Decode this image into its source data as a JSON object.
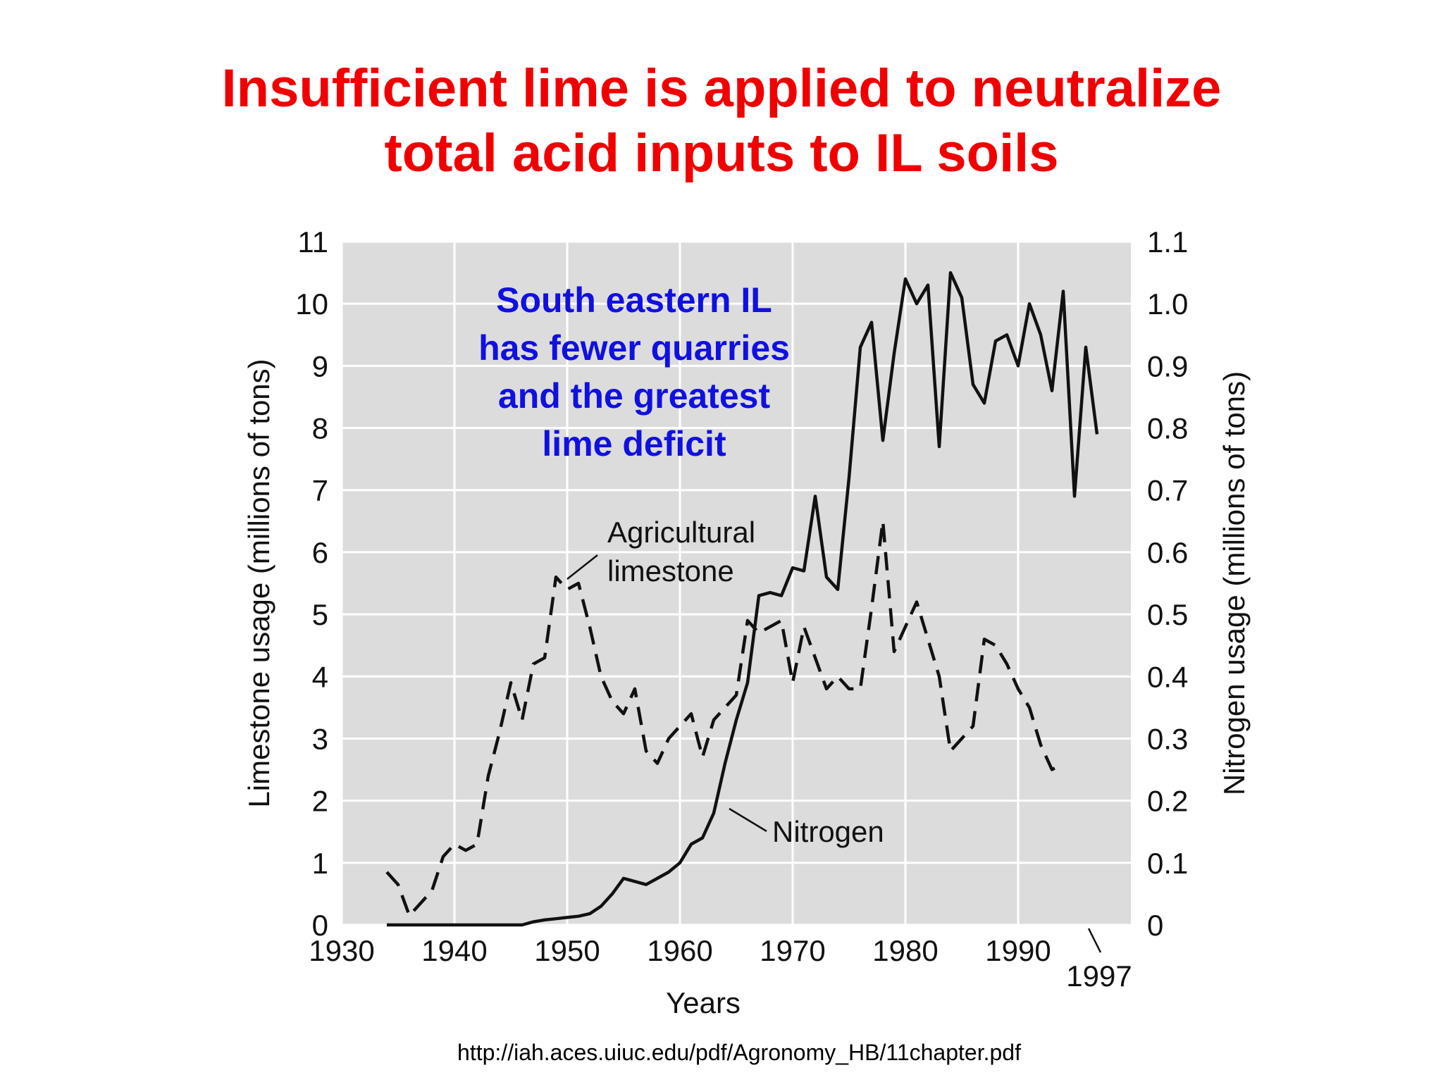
{
  "slide": {
    "title_line1": "Insufficient lime is applied to neutralize",
    "title_line2": "total acid inputs to IL soils",
    "callout_line1": "South eastern IL",
    "callout_line2": "has fewer quarries",
    "callout_line3": "and the greatest",
    "callout_line4": "lime deficit",
    "source_url": "http://iah.aces.uiuc.edu/pdf/Agronomy_HB/11chapter.pdf"
  },
  "colors": {
    "title": "#f00000",
    "callout": "#1010e0",
    "plot_background": "#dcdcdc",
    "grid": "#ffffff",
    "lines": "#111111"
  },
  "chart_data": {
    "type": "line",
    "title": "",
    "xlabel": "Years",
    "ylabel": "Limestone usage (millions of tons)",
    "y2label": "Nitrogen usage (millions of tons)",
    "xlim": [
      1930,
      2000
    ],
    "ylim": [
      0,
      11
    ],
    "y2lim": [
      0,
      1.1
    ],
    "grid": true,
    "x_ticks": [
      "1930",
      "1940",
      "1950",
      "1960",
      "1970",
      "1980",
      "1990"
    ],
    "x_extra_tick": "1997",
    "y_ticks": [
      "0",
      "1",
      "2",
      "3",
      "4",
      "5",
      "6",
      "7",
      "8",
      "9",
      "10",
      "11"
    ],
    "y2_ticks": [
      "0",
      "0.1",
      "0.2",
      "0.3",
      "0.4",
      "0.5",
      "0.6",
      "0.7",
      "0.8",
      "0.9",
      "1.0",
      "1.1"
    ],
    "annotations": {
      "limestone_label_line1": "Agricultural",
      "limestone_label_line2": "limestone",
      "nitrogen_label": "Nitrogen"
    },
    "series": [
      {
        "name": "Agricultural limestone",
        "axis": "left",
        "style": "dashed",
        "x": [
          1934,
          1935,
          1936,
          1937,
          1938,
          1939,
          1940,
          1941,
          1942,
          1943,
          1944,
          1945,
          1946,
          1947,
          1948,
          1949,
          1950,
          1951,
          1952,
          1953,
          1954,
          1955,
          1956,
          1957,
          1958,
          1959,
          1960,
          1961,
          1962,
          1963,
          1964,
          1965,
          1966,
          1967,
          1968,
          1969,
          1970,
          1971,
          1972,
          1973,
          1974,
          1975,
          1976,
          1977,
          1978,
          1979,
          1980,
          1981,
          1982,
          1983,
          1984,
          1985,
          1986,
          1987,
          1988,
          1989,
          1990,
          1991,
          1992,
          1993,
          1994
        ],
        "y": [
          0.85,
          0.65,
          0.15,
          0.35,
          0.55,
          1.1,
          1.3,
          1.2,
          1.3,
          2.4,
          3.1,
          3.9,
          3.3,
          4.2,
          4.3,
          5.6,
          5.4,
          5.5,
          4.8,
          4.0,
          3.6,
          3.4,
          3.8,
          2.8,
          2.6,
          3.0,
          3.2,
          3.4,
          2.7,
          3.3,
          3.5,
          3.7,
          4.9,
          4.7,
          4.8,
          4.9,
          3.9,
          4.8,
          4.3,
          3.8,
          4.0,
          3.8,
          3.8,
          5.1,
          6.5,
          4.4,
          4.8,
          5.2,
          4.6,
          4.0,
          2.8,
          3.0,
          3.2,
          4.6,
          4.5,
          4.2,
          3.8,
          3.5,
          2.9,
          2.5,
          2.6
        ]
      },
      {
        "name": "Nitrogen",
        "axis": "right",
        "style": "solid",
        "x": [
          1934,
          1946,
          1947,
          1948,
          1949,
          1950,
          1951,
          1952,
          1953,
          1954,
          1955,
          1956,
          1957,
          1958,
          1959,
          1960,
          1961,
          1962,
          1963,
          1964,
          1965,
          1966,
          1967,
          1968,
          1969,
          1970,
          1971,
          1972,
          1973,
          1974,
          1975,
          1976,
          1977,
          1978,
          1979,
          1980,
          1981,
          1982,
          1983,
          1984,
          1985,
          1986,
          1987,
          1988,
          1989,
          1990,
          1991,
          1992,
          1993,
          1994,
          1995,
          1996,
          1997
        ],
        "y": [
          0.0,
          0.0,
          0.005,
          0.008,
          0.01,
          0.012,
          0.014,
          0.018,
          0.03,
          0.05,
          0.075,
          0.07,
          0.065,
          0.075,
          0.085,
          0.1,
          0.13,
          0.14,
          0.18,
          0.26,
          0.33,
          0.39,
          0.53,
          0.535,
          0.53,
          0.575,
          0.57,
          0.69,
          0.56,
          0.54,
          0.72,
          0.93,
          0.97,
          0.78,
          0.92,
          1.04,
          1.0,
          1.03,
          0.77,
          1.05,
          1.01,
          0.87,
          0.84,
          0.94,
          0.95,
          0.9,
          1.0,
          0.95,
          0.86,
          1.02,
          0.69,
          0.93,
          0.79
        ]
      }
    ]
  }
}
